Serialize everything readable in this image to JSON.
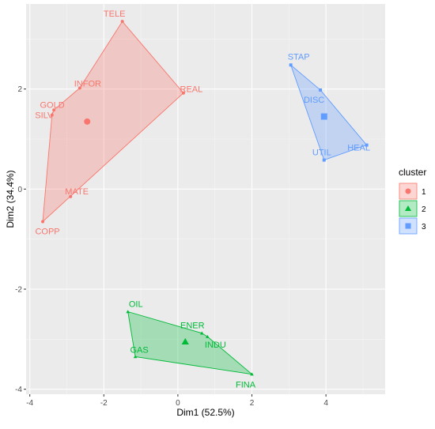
{
  "chart_data": {
    "type": "scatter",
    "xlabel": "Dim1 (52.5%)",
    "ylabel": "Dim2 (34.4%)",
    "xlim": [
      -4.1,
      5.6
    ],
    "ylim": [
      -4.1,
      3.7
    ],
    "x_ticks": [
      -4,
      -2,
      0,
      2,
      4
    ],
    "y_ticks": [
      -4,
      -2,
      0,
      2
    ],
    "grid": true,
    "legend_title": "cluster",
    "legend_position": "right",
    "clusters": [
      {
        "name": "1",
        "color": "#F8766D",
        "marker": "circle",
        "center": [
          -2.45,
          1.35
        ],
        "points": [
          {
            "label": "TELE",
            "x": -1.5,
            "y": 3.35
          },
          {
            "label": "INFOR",
            "x": -2.65,
            "y": 2.02
          },
          {
            "label": "REAL",
            "x": 0.15,
            "y": 1.92
          },
          {
            "label": "GOLD",
            "x": -3.35,
            "y": 1.58
          },
          {
            "label": "SILV",
            "x": -3.4,
            "y": 1.48
          },
          {
            "label": "MATE",
            "x": -2.9,
            "y": -0.15
          },
          {
            "label": "COPP",
            "x": -3.65,
            "y": -0.65
          }
        ],
        "hull": [
          "TELE",
          "REAL",
          "COPP",
          "SILV",
          "GOLD",
          "INFOR"
        ]
      },
      {
        "name": "2",
        "color": "#00BA38",
        "marker": "triangle",
        "center": [
          0.2,
          -3.05
        ],
        "points": [
          {
            "label": "OIL",
            "x": -1.35,
            "y": -2.45
          },
          {
            "label": "ENER",
            "x": 0.65,
            "y": -2.88
          },
          {
            "label": "INDU",
            "x": 0.8,
            "y": -2.95
          },
          {
            "label": "GAS",
            "x": -1.15,
            "y": -3.35
          },
          {
            "label": "FINA",
            "x": 2.0,
            "y": -3.7
          }
        ],
        "hull": [
          "OIL",
          "ENER",
          "INDU",
          "FINA",
          "GAS"
        ]
      },
      {
        "name": "3",
        "color": "#619CFF",
        "marker": "square",
        "center": [
          3.95,
          1.45
        ],
        "points": [
          {
            "label": "STAP",
            "x": 3.05,
            "y": 2.48
          },
          {
            "label": "DISC",
            "x": 3.85,
            "y": 1.98
          },
          {
            "label": "HEAL",
            "x": 5.1,
            "y": 0.88
          },
          {
            "label": "UTIL",
            "x": 3.95,
            "y": 0.58
          }
        ],
        "hull": [
          "STAP",
          "DISC",
          "HEAL",
          "UTIL"
        ]
      }
    ]
  }
}
